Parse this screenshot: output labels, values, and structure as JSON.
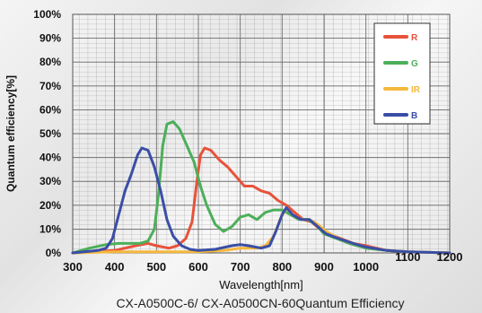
{
  "chart_data": {
    "type": "line",
    "title": "CX-A0500C-6/ CX-A0500CN-60Quantum Efficiency",
    "xlabel": "Wavelength[nm]",
    "ylabel": "Quantum efficiency[%]",
    "xlim": [
      300,
      1200
    ],
    "ylim": [
      0,
      100
    ],
    "x_ticks": [
      "300",
      "400",
      "500",
      "600",
      "700",
      "800",
      "900",
      "1000",
      "1100",
      "1200"
    ],
    "y_ticks": [
      "0%",
      "10%",
      "20%",
      "30%",
      "40%",
      "50%",
      "60%",
      "70%",
      "80%",
      "90%",
      "100%"
    ],
    "grid": true,
    "legend_position": "top-right",
    "series": [
      {
        "name": "R",
        "color": "#e8523a",
        "points": [
          [
            300,
            0
          ],
          [
            400,
            1
          ],
          [
            450,
            3
          ],
          [
            480,
            4
          ],
          [
            500,
            3
          ],
          [
            530,
            2
          ],
          [
            550,
            3
          ],
          [
            570,
            6
          ],
          [
            585,
            13
          ],
          [
            595,
            28
          ],
          [
            605,
            41
          ],
          [
            615,
            44
          ],
          [
            630,
            43
          ],
          [
            650,
            39
          ],
          [
            670,
            36
          ],
          [
            690,
            32
          ],
          [
            710,
            28
          ],
          [
            730,
            28
          ],
          [
            750,
            26
          ],
          [
            770,
            25
          ],
          [
            790,
            22
          ],
          [
            810,
            20
          ],
          [
            830,
            17
          ],
          [
            850,
            14
          ],
          [
            870,
            13
          ],
          [
            890,
            10
          ],
          [
            910,
            8
          ],
          [
            940,
            6
          ],
          [
            970,
            4
          ],
          [
            1000,
            3
          ],
          [
            1050,
            1
          ],
          [
            1100,
            0.5
          ],
          [
            1200,
            0
          ]
        ]
      },
      {
        "name": "G",
        "color": "#4caf5a",
        "points": [
          [
            300,
            0
          ],
          [
            340,
            2
          ],
          [
            380,
            3.5
          ],
          [
            410,
            4
          ],
          [
            440,
            4
          ],
          [
            460,
            4
          ],
          [
            480,
            5
          ],
          [
            495,
            10
          ],
          [
            505,
            25
          ],
          [
            515,
            45
          ],
          [
            525,
            54
          ],
          [
            540,
            55
          ],
          [
            555,
            52
          ],
          [
            570,
            46
          ],
          [
            590,
            38
          ],
          [
            605,
            28
          ],
          [
            620,
            20
          ],
          [
            640,
            12
          ],
          [
            660,
            9
          ],
          [
            680,
            11
          ],
          [
            700,
            15
          ],
          [
            720,
            16
          ],
          [
            740,
            14
          ],
          [
            760,
            17
          ],
          [
            780,
            18
          ],
          [
            800,
            18
          ],
          [
            820,
            16
          ],
          [
            840,
            14
          ],
          [
            860,
            14
          ],
          [
            880,
            12
          ],
          [
            900,
            8
          ],
          [
            930,
            6
          ],
          [
            960,
            4
          ],
          [
            1000,
            2
          ],
          [
            1050,
            1
          ],
          [
            1100,
            0.5
          ],
          [
            1200,
            0
          ]
        ]
      },
      {
        "name": "IR",
        "color": "#f5b83d",
        "points": [
          [
            300,
            0
          ],
          [
            400,
            0.5
          ],
          [
            500,
            0.5
          ],
          [
            600,
            0.5
          ],
          [
            660,
            1
          ],
          [
            700,
            2
          ],
          [
            740,
            2
          ],
          [
            760,
            3
          ],
          [
            780,
            7
          ],
          [
            795,
            14
          ],
          [
            810,
            19
          ],
          [
            825,
            16
          ],
          [
            845,
            14
          ],
          [
            865,
            14
          ],
          [
            885,
            12
          ],
          [
            905,
            9
          ],
          [
            935,
            6
          ],
          [
            970,
            4
          ],
          [
            1000,
            2.5
          ],
          [
            1050,
            1
          ],
          [
            1100,
            0.5
          ],
          [
            1200,
            0
          ]
        ]
      },
      {
        "name": "B",
        "color": "#3a4ea6",
        "points": [
          [
            300,
            0
          ],
          [
            360,
            1
          ],
          [
            380,
            2
          ],
          [
            395,
            6
          ],
          [
            410,
            16
          ],
          [
            425,
            26
          ],
          [
            440,
            33
          ],
          [
            455,
            41
          ],
          [
            465,
            44
          ],
          [
            480,
            43
          ],
          [
            495,
            36
          ],
          [
            510,
            26
          ],
          [
            525,
            14
          ],
          [
            540,
            7
          ],
          [
            560,
            3
          ],
          [
            580,
            1.5
          ],
          [
            600,
            1
          ],
          [
            640,
            1.5
          ],
          [
            680,
            3
          ],
          [
            700,
            3.5
          ],
          [
            720,
            3
          ],
          [
            750,
            2
          ],
          [
            770,
            3
          ],
          [
            785,
            9
          ],
          [
            800,
            16
          ],
          [
            810,
            19
          ],
          [
            825,
            16
          ],
          [
            845,
            14
          ],
          [
            865,
            14
          ],
          [
            885,
            11
          ],
          [
            905,
            8
          ],
          [
            935,
            6
          ],
          [
            970,
            4
          ],
          [
            1000,
            2.5
          ],
          [
            1050,
            1
          ],
          [
            1100,
            0.5
          ],
          [
            1200,
            0
          ]
        ]
      }
    ]
  }
}
